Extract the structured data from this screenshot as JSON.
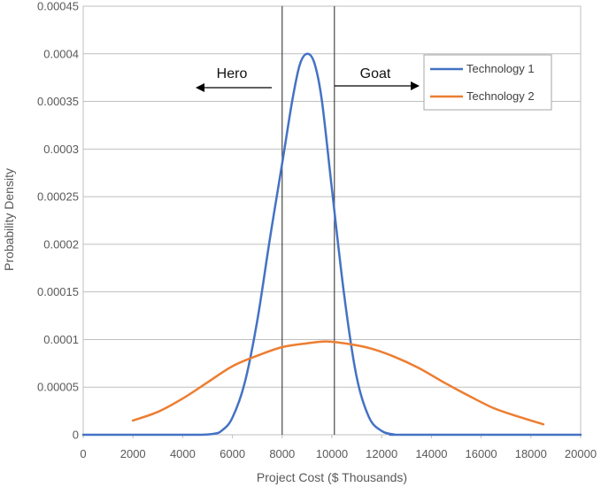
{
  "chart_data": {
    "type": "line",
    "title": "",
    "xlabel": "Project Cost ($ Thousands)",
    "ylabel": "Probability Density",
    "xlim": [
      0,
      20000
    ],
    "ylim": [
      0,
      0.00045
    ],
    "grid": true,
    "legend_position": "top-right",
    "x_ticks": [
      "0",
      "2000",
      "4000",
      "6000",
      "8000",
      "10000",
      "12000",
      "14000",
      "16000",
      "18000",
      "20000"
    ],
    "y_ticks": [
      "0",
      "0.00005",
      "0.0001",
      "0.00015",
      "0.0002",
      "0.00025",
      "0.0003",
      "0.00035",
      "0.0004",
      "0.00045"
    ],
    "series": [
      {
        "name": "Technology 1",
        "color": "#4472c4",
        "points": [
          [
            0,
            0
          ],
          [
            4000,
            0
          ],
          [
            5200,
            8e-07
          ],
          [
            5600,
            5e-06
          ],
          [
            6000,
            1.8e-05
          ],
          [
            6500,
            5.5e-05
          ],
          [
            7000,
            0.00012
          ],
          [
            7500,
            0.000205
          ],
          [
            8000,
            0.000285
          ],
          [
            8400,
            0.00035
          ],
          [
            8700,
            0.000388
          ],
          [
            9000,
            0.0004
          ],
          [
            9300,
            0.00039
          ],
          [
            9600,
            0.00035
          ],
          [
            10000,
            0.000258
          ],
          [
            10500,
            0.000145
          ],
          [
            11000,
            6e-05
          ],
          [
            11500,
            1.8e-05
          ],
          [
            12000,
            4e-06
          ],
          [
            12500,
            3e-07
          ],
          [
            13000,
            0
          ],
          [
            20000,
            0
          ]
        ]
      },
      {
        "name": "Technology 2",
        "color": "#ed7d31",
        "points": [
          [
            2000,
            1.5e-05
          ],
          [
            3000,
            2.4e-05
          ],
          [
            4000,
            3.8e-05
          ],
          [
            5000,
            5.5e-05
          ],
          [
            6000,
            7.2e-05
          ],
          [
            7000,
            8.3e-05
          ],
          [
            8000,
            9.2e-05
          ],
          [
            9000,
            9.6e-05
          ],
          [
            9750,
            9.8e-05
          ],
          [
            10500,
            9.6e-05
          ],
          [
            11500,
            9.1e-05
          ],
          [
            12500,
            8.2e-05
          ],
          [
            13500,
            7e-05
          ],
          [
            14500,
            5.5e-05
          ],
          [
            15500,
            4.1e-05
          ],
          [
            16500,
            2.8e-05
          ],
          [
            17500,
            1.9e-05
          ],
          [
            18500,
            1.1e-05
          ]
        ]
      }
    ],
    "vertical_lines": [
      8000,
      10100
    ],
    "annotations": [
      {
        "text": "Hero",
        "direction": "left"
      },
      {
        "text": "Goat",
        "direction": "right"
      }
    ]
  }
}
